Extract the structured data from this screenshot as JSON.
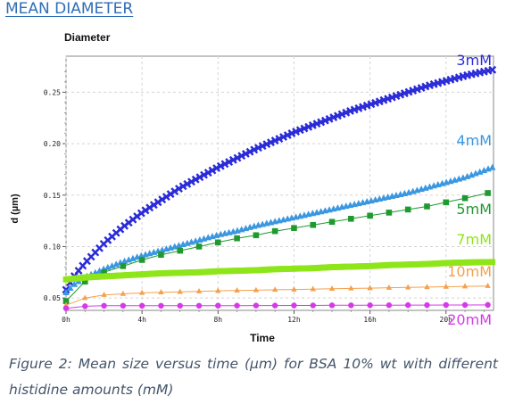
{
  "heading": "MEAN DIAMETER",
  "caption": "Figure 2: Mean size versus time (µm) for BSA 10% wt with different histidine amounts (mM)",
  "chart_data": {
    "type": "line",
    "title": "Diameter",
    "xlabel": "Time",
    "ylabel": "d (µm)",
    "xlim": [
      0,
      22.5
    ],
    "ylim": [
      0.038,
      0.285
    ],
    "x_ticks": [
      0,
      4,
      8,
      12,
      16,
      20
    ],
    "x_tick_labels": [
      "0h",
      "4h",
      "8h",
      "12h",
      "16h",
      "20h"
    ],
    "y_ticks": [
      0.05,
      0.1,
      0.15,
      0.2,
      0.25
    ],
    "y_tick_labels": [
      "0.05",
      "0.10",
      "0.15",
      "0.20",
      "0.25"
    ],
    "grid": true,
    "legend": "labels at right end of each series",
    "series": [
      {
        "name": "3mM",
        "color": "#2b2bd8",
        "marker": "cross",
        "x": [
          0,
          0.25,
          0.5,
          1,
          2,
          3,
          4,
          5,
          6,
          7,
          8,
          9,
          10,
          11,
          12,
          13,
          14,
          15,
          16,
          17,
          18,
          19,
          20,
          21,
          22.5
        ],
        "y": [
          0.058,
          0.066,
          0.073,
          0.084,
          0.103,
          0.119,
          0.133,
          0.145,
          0.157,
          0.167,
          0.177,
          0.186,
          0.195,
          0.203,
          0.211,
          0.218,
          0.225,
          0.232,
          0.238,
          0.244,
          0.25,
          0.256,
          0.261,
          0.266,
          0.272
        ]
      },
      {
        "name": "4mM",
        "color": "#3a97e0",
        "marker": "triangle",
        "x": [
          0,
          0.25,
          0.5,
          1,
          2,
          3,
          4,
          5,
          6,
          7,
          8,
          9,
          10,
          11,
          12,
          13,
          14,
          15,
          16,
          17,
          18,
          19,
          20,
          21,
          22.5
        ],
        "y": [
          0.055,
          0.06,
          0.064,
          0.07,
          0.078,
          0.085,
          0.091,
          0.096,
          0.101,
          0.106,
          0.111,
          0.115,
          0.12,
          0.124,
          0.128,
          0.132,
          0.136,
          0.14,
          0.144,
          0.148,
          0.152,
          0.157,
          0.162,
          0.167,
          0.177
        ]
      },
      {
        "name": "5mM",
        "color": "#1f9a2e",
        "marker": "square",
        "x": [
          0,
          1,
          2,
          3,
          4,
          5,
          6,
          7,
          8,
          9,
          10,
          11,
          12,
          13,
          14,
          15,
          16,
          17,
          18,
          19,
          20,
          21,
          22.2
        ],
        "y": [
          0.047,
          0.066,
          0.075,
          0.081,
          0.087,
          0.092,
          0.096,
          0.1,
          0.104,
          0.108,
          0.111,
          0.115,
          0.118,
          0.121,
          0.124,
          0.127,
          0.13,
          0.133,
          0.136,
          0.139,
          0.143,
          0.147,
          0.152
        ]
      },
      {
        "name": "7mM",
        "color": "#8ee51a",
        "marker": "square",
        "x": [
          0,
          0.5,
          1,
          2,
          3,
          4,
          5,
          6,
          7,
          8,
          9,
          10,
          11,
          12,
          13,
          14,
          15,
          16,
          17,
          18,
          19,
          20,
          21,
          22.5
        ],
        "y": [
          0.068,
          0.069,
          0.07,
          0.071,
          0.072,
          0.073,
          0.074,
          0.0745,
          0.075,
          0.076,
          0.0765,
          0.077,
          0.078,
          0.0785,
          0.079,
          0.08,
          0.0805,
          0.081,
          0.082,
          0.0825,
          0.083,
          0.084,
          0.0845,
          0.085
        ]
      },
      {
        "name": "10mM",
        "color": "#f5a04a",
        "marker": "triangle",
        "x": [
          0,
          1,
          2,
          3,
          4,
          5,
          6,
          7,
          8,
          9,
          10,
          11,
          12,
          13,
          14,
          15,
          16,
          17,
          18,
          19,
          20,
          21,
          22.2
        ],
        "y": [
          0.043,
          0.05,
          0.053,
          0.054,
          0.055,
          0.0555,
          0.056,
          0.0565,
          0.057,
          0.0573,
          0.0576,
          0.058,
          0.0583,
          0.0586,
          0.059,
          0.0593,
          0.0596,
          0.06,
          0.0603,
          0.0606,
          0.061,
          0.0613,
          0.0617
        ]
      },
      {
        "name": "20mM",
        "color": "#d63ae8",
        "marker": "circle",
        "x": [
          0,
          1,
          2,
          3,
          4,
          5,
          6,
          7,
          8,
          9,
          10,
          11,
          12,
          13,
          14,
          15,
          16,
          17,
          18,
          19,
          20,
          21,
          22.2
        ],
        "y": [
          0.04,
          0.042,
          0.0425,
          0.0425,
          0.0425,
          0.0425,
          0.0425,
          0.0425,
          0.0426,
          0.0426,
          0.0427,
          0.0427,
          0.0428,
          0.0428,
          0.0429,
          0.0429,
          0.043,
          0.043,
          0.0431,
          0.0431,
          0.0432,
          0.0432,
          0.0433
        ]
      }
    ]
  }
}
